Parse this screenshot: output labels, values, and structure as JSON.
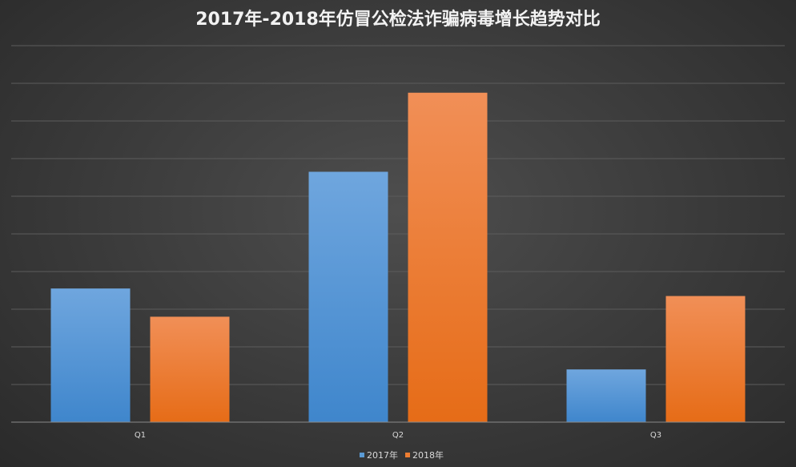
{
  "chart_data": {
    "type": "bar",
    "title": "2017年-2018年仿冒公检法诈骗病毒增长趋势对比",
    "categories": [
      "Q1",
      "Q2",
      "Q3"
    ],
    "series": [
      {
        "name": "2017年",
        "values": [
          3.55,
          6.65,
          1.4
        ],
        "color": "#5b9bd5"
      },
      {
        "name": "2018年",
        "values": [
          2.8,
          8.75,
          3.35
        ],
        "color": "#ed7d31"
      }
    ],
    "ylim": [
      0,
      10
    ],
    "grid": true,
    "legend_position": "bottom"
  }
}
